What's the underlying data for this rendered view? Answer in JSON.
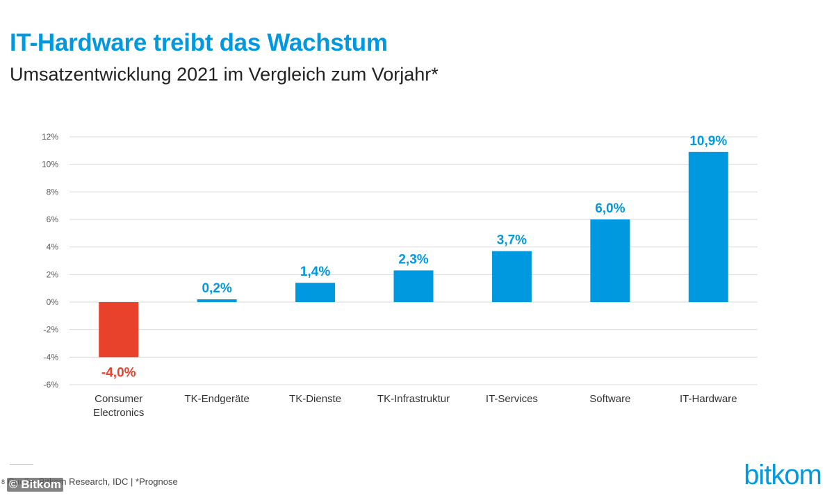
{
  "header": {
    "title": "IT-Hardware treibt das Wachstum",
    "subtitle": "Umsatzentwicklung 2021 im Vergleich zum Vorjahr*"
  },
  "chart_data": {
    "type": "bar",
    "title": "IT-Hardware treibt das Wachstum",
    "subtitle": "Umsatzentwicklung 2021 im Vergleich zum Vorjahr*",
    "categories": [
      [
        "Consumer",
        "Electronics"
      ],
      [
        "TK-Endgeräte"
      ],
      [
        "TK-Dienste"
      ],
      [
        "TK-Infrastruktur"
      ],
      [
        "IT-Services"
      ],
      [
        "Software"
      ],
      [
        "IT-Hardware"
      ]
    ],
    "values": [
      -4.0,
      0.2,
      1.4,
      2.3,
      3.7,
      6.0,
      10.9
    ],
    "value_labels": [
      "-4,0%",
      "0,2%",
      "1,4%",
      "2,3%",
      "3,7%",
      "6,0%",
      "10,9%"
    ],
    "ylim": [
      -6,
      12
    ],
    "yticks": [
      -6,
      -4,
      -2,
      0,
      2,
      4,
      6,
      8,
      10,
      12
    ],
    "ytick_labels": [
      "-6%",
      "-4%",
      "-2%",
      "0%",
      "2%",
      "4%",
      "6%",
      "8%",
      "10%",
      "12%"
    ],
    "xlabel": "",
    "ylabel": "",
    "grid": true,
    "colors": {
      "positive": "#0099e0",
      "negative": "#e8412c",
      "grid": "#d9d9d9",
      "tick_text": "#595959",
      "category_text": "#333333"
    }
  },
  "footer": {
    "page_number": "8",
    "source": "Quelle: Bitkom Research, IDC | *Prognose",
    "copyright": "© Bitkom",
    "logo": "bitkom"
  }
}
